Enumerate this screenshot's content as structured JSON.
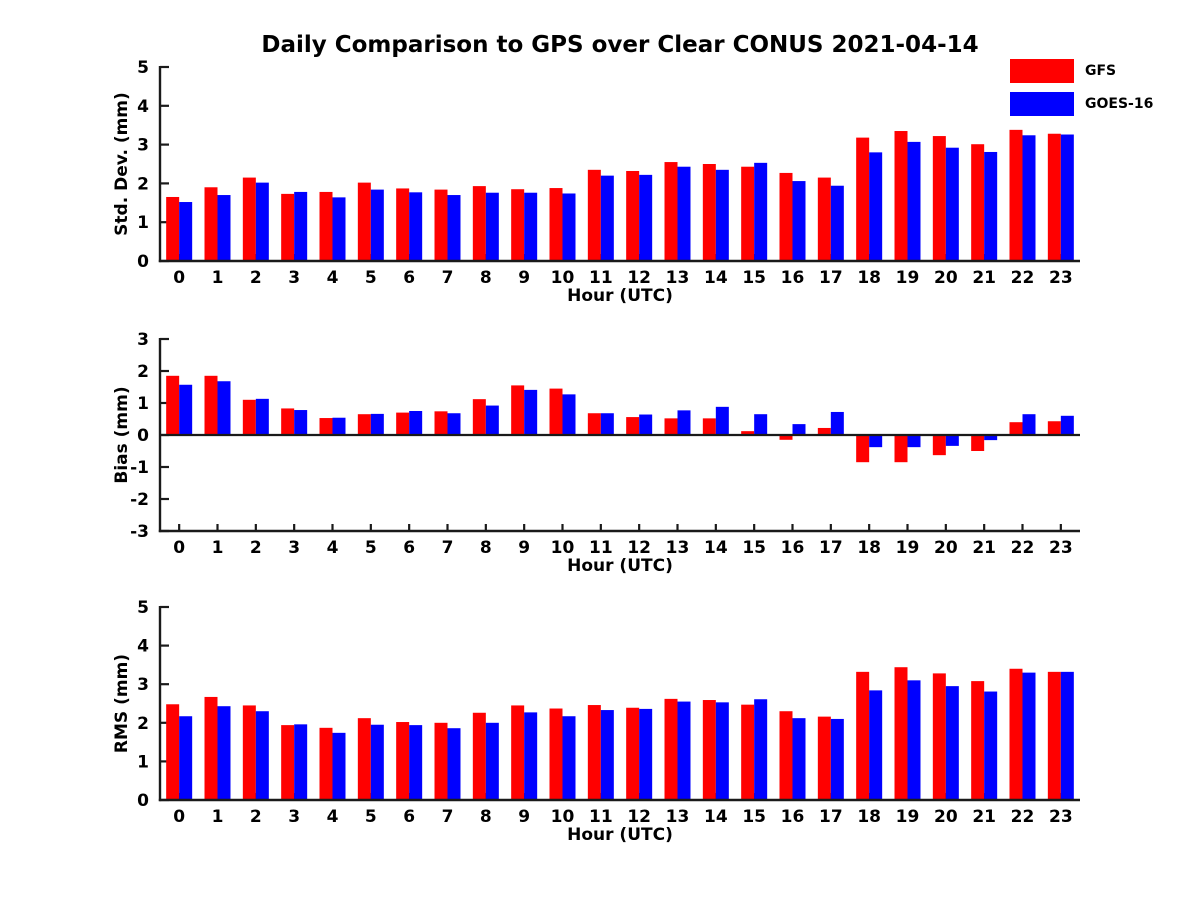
{
  "title": "Daily Comparison to GPS over Clear CONUS 2021-04-14",
  "legend": {
    "position": "top-right",
    "items": [
      {
        "label": "GFS",
        "color": "#ff0000"
      },
      {
        "label": "GOES-16",
        "color": "#0000ff"
      }
    ]
  },
  "colors": {
    "gfs": "#ff0000",
    "goes16": "#0000ff",
    "axis": "#1a1a1a",
    "text": "#000000",
    "background": "#ffffff"
  },
  "chart_data": [
    {
      "id": "stddev",
      "type": "bar",
      "title": "",
      "xlabel": "Hour (UTC)",
      "ylabel": "Std. Dev. (mm)",
      "ylim": [
        0,
        5
      ],
      "yticks": [
        0,
        1,
        2,
        3,
        4,
        5
      ],
      "grid": false,
      "categories": [
        0,
        1,
        2,
        3,
        4,
        5,
        6,
        7,
        8,
        9,
        10,
        11,
        12,
        13,
        14,
        15,
        16,
        17,
        18,
        19,
        20,
        21,
        22,
        23
      ],
      "series": [
        {
          "name": "GFS",
          "color": "#ff0000",
          "values": [
            1.65,
            1.9,
            2.15,
            1.73,
            1.78,
            2.02,
            1.87,
            1.84,
            1.93,
            1.85,
            1.88,
            2.35,
            2.32,
            2.55,
            2.5,
            2.43,
            2.27,
            2.15,
            3.18,
            3.35,
            3.22,
            3.01,
            3.38,
            3.28
          ]
        },
        {
          "name": "GOES-16",
          "color": "#0000ff",
          "values": [
            1.52,
            1.7,
            2.02,
            1.78,
            1.64,
            1.84,
            1.77,
            1.7,
            1.76,
            1.76,
            1.74,
            2.2,
            2.22,
            2.43,
            2.35,
            2.53,
            2.06,
            1.94,
            2.8,
            3.07,
            2.92,
            2.81,
            3.24,
            3.26
          ]
        }
      ]
    },
    {
      "id": "bias",
      "type": "bar",
      "title": "",
      "xlabel": "Hour (UTC)",
      "ylabel": "Bias (mm)",
      "ylim": [
        -3,
        3
      ],
      "yticks": [
        -3,
        -2,
        -1,
        0,
        1,
        2,
        3
      ],
      "grid": false,
      "zero_line": true,
      "categories": [
        0,
        1,
        2,
        3,
        4,
        5,
        6,
        7,
        8,
        9,
        10,
        11,
        12,
        13,
        14,
        15,
        16,
        17,
        18,
        19,
        20,
        21,
        22,
        23
      ],
      "series": [
        {
          "name": "GFS",
          "color": "#ff0000",
          "values": [
            1.85,
            1.85,
            1.1,
            0.83,
            0.53,
            0.65,
            0.7,
            0.74,
            1.12,
            1.55,
            1.45,
            0.68,
            0.56,
            0.52,
            0.52,
            0.12,
            -0.15,
            0.22,
            -0.85,
            -0.85,
            -0.63,
            -0.5,
            0.4,
            0.43
          ]
        },
        {
          "name": "GOES-16",
          "color": "#0000ff",
          "values": [
            1.57,
            1.68,
            1.13,
            0.78,
            0.54,
            0.66,
            0.75,
            0.68,
            0.92,
            1.41,
            1.27,
            0.68,
            0.64,
            0.77,
            0.88,
            0.65,
            0.34,
            0.72,
            -0.38,
            -0.38,
            -0.34,
            -0.16,
            0.65,
            0.6
          ]
        }
      ]
    },
    {
      "id": "rms",
      "type": "bar",
      "title": "",
      "xlabel": "Hour (UTC)",
      "ylabel": "RMS (mm)",
      "ylim": [
        0,
        5
      ],
      "yticks": [
        0,
        1,
        2,
        3,
        4,
        5
      ],
      "grid": false,
      "categories": [
        0,
        1,
        2,
        3,
        4,
        5,
        6,
        7,
        8,
        9,
        10,
        11,
        12,
        13,
        14,
        15,
        16,
        17,
        18,
        19,
        20,
        21,
        22,
        23
      ],
      "series": [
        {
          "name": "GFS",
          "color": "#ff0000",
          "values": [
            2.48,
            2.67,
            2.45,
            1.94,
            1.87,
            2.12,
            2.02,
            2.0,
            2.26,
            2.45,
            2.37,
            2.46,
            2.39,
            2.62,
            2.59,
            2.47,
            2.3,
            2.16,
            3.32,
            3.44,
            3.28,
            3.08,
            3.4,
            3.32
          ]
        },
        {
          "name": "GOES-16",
          "color": "#0000ff",
          "values": [
            2.17,
            2.43,
            2.3,
            1.96,
            1.74,
            1.95,
            1.94,
            1.86,
            2.0,
            2.27,
            2.17,
            2.33,
            2.36,
            2.55,
            2.53,
            2.61,
            2.12,
            2.1,
            2.84,
            3.1,
            2.95,
            2.81,
            3.3,
            3.32
          ]
        }
      ]
    }
  ]
}
